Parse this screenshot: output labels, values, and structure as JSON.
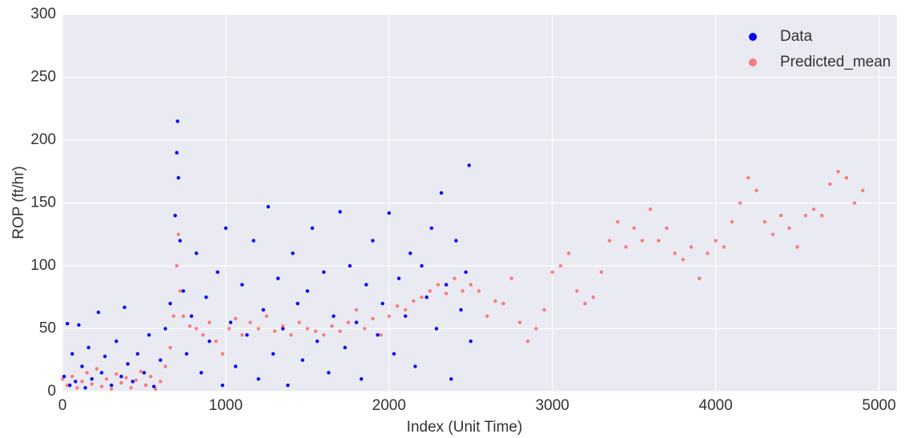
{
  "chart_data": {
    "type": "scatter",
    "xlabel": "Index (Unit Time)",
    "ylabel": "ROP (ft/hr)",
    "xlim": [
      0,
      5110
    ],
    "ylim": [
      0,
      300
    ],
    "xticks": [
      0,
      1000,
      2000,
      3000,
      4000,
      5000
    ],
    "yticks": [
      0,
      50,
      100,
      150,
      200,
      250,
      300
    ],
    "grid": true,
    "legend": "upper right",
    "series": [
      {
        "name": "Data",
        "color": "#0000ff",
        "x": [
          10,
          30,
          45,
          60,
          80,
          100,
          120,
          140,
          160,
          180,
          220,
          240,
          260,
          300,
          330,
          360,
          380,
          400,
          430,
          460,
          500,
          530,
          560,
          600,
          630,
          660,
          690,
          700,
          705,
          710,
          720,
          740,
          760,
          790,
          820,
          850,
          880,
          900,
          950,
          980,
          1000,
          1030,
          1060,
          1100,
          1130,
          1170,
          1200,
          1230,
          1260,
          1290,
          1320,
          1350,
          1380,
          1410,
          1440,
          1470,
          1500,
          1530,
          1560,
          1600,
          1630,
          1660,
          1700,
          1730,
          1760,
          1800,
          1830,
          1860,
          1900,
          1930,
          1960,
          2000,
          2030,
          2060,
          2100,
          2130,
          2160,
          2200,
          2230,
          2260,
          2290,
          2320,
          2350,
          2380,
          2410,
          2440,
          2470,
          2490,
          2500
        ],
        "values": [
          12,
          54,
          5,
          30,
          8,
          53,
          20,
          3,
          35,
          10,
          63,
          15,
          28,
          5,
          40,
          12,
          67,
          22,
          8,
          30,
          15,
          45,
          4,
          25,
          50,
          70,
          140,
          190,
          215,
          170,
          120,
          80,
          30,
          60,
          110,
          15,
          75,
          40,
          95,
          5,
          130,
          55,
          20,
          85,
          45,
          120,
          10,
          65,
          147,
          30,
          90,
          50,
          5,
          110,
          70,
          25,
          80,
          130,
          40,
          95,
          15,
          60,
          143,
          35,
          100,
          55,
          10,
          85,
          120,
          45,
          70,
          142,
          30,
          90,
          60,
          110,
          20,
          100,
          75,
          130,
          50,
          158,
          85,
          10,
          120,
          65,
          95,
          180,
          40
        ]
      },
      {
        "name": "Predicted_mean",
        "color": "#ff2020",
        "x": [
          0,
          30,
          60,
          90,
          120,
          150,
          180,
          210,
          240,
          270,
          300,
          330,
          360,
          390,
          420,
          450,
          480,
          510,
          540,
          570,
          600,
          630,
          660,
          680,
          700,
          710,
          720,
          740,
          780,
          820,
          860,
          900,
          940,
          980,
          1020,
          1060,
          1100,
          1150,
          1200,
          1250,
          1300,
          1350,
          1400,
          1450,
          1500,
          1550,
          1600,
          1650,
          1700,
          1750,
          1800,
          1850,
          1900,
          1950,
          2000,
          2050,
          2100,
          2150,
          2200,
          2250,
          2300,
          2350,
          2400,
          2450,
          2500,
          2550,
          2600,
          2650,
          2700,
          2750,
          2800,
          2850,
          2900,
          2950,
          3000,
          3050,
          3100,
          3150,
          3200,
          3250,
          3300,
          3350,
          3400,
          3450,
          3500,
          3550,
          3600,
          3650,
          3700,
          3750,
          3800,
          3850,
          3900,
          3950,
          4000,
          4050,
          4100,
          4150,
          4200,
          4250,
          4300,
          4350,
          4400,
          4450,
          4500,
          4550,
          4600,
          4650,
          4700,
          4750,
          4800,
          4850,
          4900
        ],
        "values": [
          10,
          5,
          12,
          3,
          8,
          15,
          6,
          18,
          4,
          10,
          2,
          14,
          7,
          11,
          3,
          9,
          16,
          5,
          12,
          2,
          8,
          20,
          35,
          60,
          100,
          125,
          80,
          60,
          52,
          50,
          45,
          55,
          40,
          30,
          50,
          58,
          45,
          55,
          50,
          60,
          48,
          52,
          45,
          55,
          50,
          48,
          45,
          52,
          48,
          55,
          65,
          50,
          58,
          45,
          60,
          68,
          65,
          72,
          75,
          80,
          85,
          78,
          90,
          80,
          85,
          80,
          60,
          72,
          70,
          90,
          55,
          40,
          50,
          65,
          95,
          100,
          110,
          80,
          70,
          75,
          95,
          120,
          135,
          115,
          130,
          120,
          145,
          120,
          130,
          110,
          105,
          115,
          90,
          110,
          120,
          115,
          135,
          150,
          170,
          160,
          135,
          125,
          140,
          130,
          115,
          140,
          145,
          140,
          165,
          175,
          170,
          150,
          160
        ]
      }
    ]
  }
}
